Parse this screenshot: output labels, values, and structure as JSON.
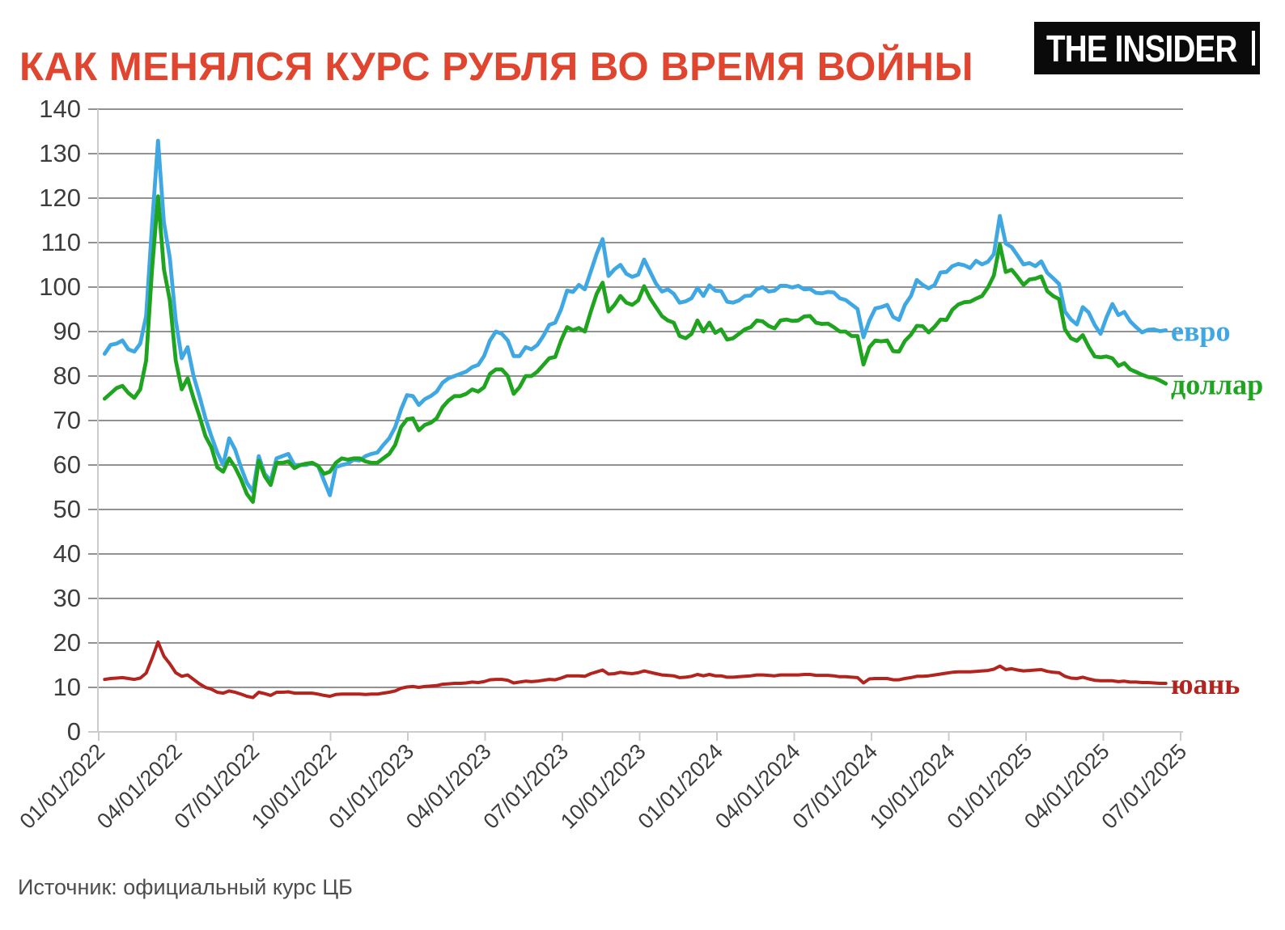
{
  "header": {
    "title": "КАК МЕНЯЛСЯ КУРС РУБЛЯ ВО ВРЕМЯ ВОЙНЫ",
    "logo_text": "THE INSIDER"
  },
  "footer": {
    "source": "Источник: официальный курс ЦБ"
  },
  "colors": {
    "title_red": "#E0452F",
    "euro_blue": "#3FA8E3",
    "dollar_green": "#1EA41E",
    "yuan_red": "#B3241F",
    "grid_gray": "#929292",
    "axis_light_gray": "#cccccc",
    "tick_label_gray": "#3d3d3d"
  },
  "chart_data": {
    "type": "line",
    "title": "КАК МЕНЯЛСЯ КУРС РУБЛЯ ВО ВРЕМЯ ВОЙНЫ",
    "xlabel": "",
    "ylabel": "",
    "ylim": [
      0,
      140
    ],
    "y_ticks": [
      0,
      10,
      20,
      30,
      40,
      50,
      60,
      70,
      80,
      90,
      100,
      110,
      120,
      130,
      140
    ],
    "x_tick_labels": [
      "01/01/2022",
      "04/01/2022",
      "07/01/2022",
      "10/01/2022",
      "01/01/2023",
      "04/01/2023",
      "07/01/2023",
      "10/01/2023",
      "01/01/2024",
      "04/01/2024",
      "07/01/2024",
      "10/01/2024",
      "01/01/2025",
      "04/01/2025",
      "07/01/2025"
    ],
    "grid": "horizontal",
    "legend_position": "labels at right end of each line",
    "sampling": "weekly values, 08/01/2022 through 14/06/2025",
    "series": [
      {
        "name": "евро",
        "color": "#3FA8E3",
        "values": [
          85.0,
          87.0,
          87.3,
          88.0,
          86.0,
          85.5,
          87.3,
          93.5,
          114.0,
          132.9,
          114.5,
          106.5,
          92.5,
          84.0,
          86.5,
          80.0,
          75.5,
          70.5,
          66.5,
          62.8,
          60.0,
          66.0,
          63.5,
          59.5,
          56.0,
          54.0,
          62.0,
          58.0,
          56.5,
          61.5,
          62.0,
          62.5,
          60.0,
          60.0,
          60.0,
          60.5,
          59.8,
          56.5,
          53.2,
          59.5,
          60.0,
          60.3,
          61.2,
          61.0,
          62.0,
          62.5,
          62.8,
          64.5,
          66.0,
          68.5,
          72.5,
          75.7,
          75.5,
          73.5,
          74.8,
          75.5,
          76.5,
          78.5,
          79.5,
          80.0,
          80.5,
          81.0,
          82.0,
          82.5,
          84.5,
          88.0,
          90.0,
          89.5,
          88.0,
          84.5,
          84.5,
          86.5,
          86.0,
          87.0,
          89.0,
          91.5,
          92.0,
          95.0,
          99.2,
          98.9,
          100.5,
          99.5,
          103.5,
          107.5,
          110.8,
          102.5,
          104.0,
          105.0,
          103.0,
          102.3,
          102.8,
          106.2,
          103.5,
          100.8,
          99.0,
          99.5,
          98.5,
          96.5,
          96.8,
          97.5,
          99.8,
          98.0,
          100.4,
          99.2,
          99.1,
          96.7,
          96.5,
          97.0,
          98.0,
          98.1,
          99.5,
          100.0,
          99.0,
          99.2,
          100.3,
          100.3,
          99.9,
          100.3,
          99.5,
          99.6,
          98.7,
          98.6,
          98.9,
          98.8,
          97.5,
          97.1,
          96.1,
          95.1,
          88.7,
          92.5,
          95.2,
          95.5,
          96.0,
          93.3,
          92.6,
          96.0,
          98.0,
          101.6,
          100.5,
          99.7,
          100.5,
          103.3,
          103.4,
          104.7,
          105.2,
          104.9,
          104.3,
          105.9,
          105.1,
          105.7,
          107.4,
          116.0,
          109.8,
          109.0,
          107.1,
          105.1,
          105.4,
          104.7,
          105.8,
          103.2,
          102.0,
          100.7,
          94.5,
          92.7,
          91.6,
          95.5,
          94.3,
          91.5,
          89.5,
          93.2,
          96.2,
          93.7,
          94.4,
          92.3,
          91.0,
          89.8,
          90.4,
          90.5,
          90.1,
          90.3
        ]
      },
      {
        "name": "доллар",
        "color": "#1EA41E",
        "values": [
          74.9,
          76.1,
          77.3,
          77.8,
          76.2,
          75.1,
          77.0,
          83.5,
          104.0,
          120.4,
          104.0,
          97.0,
          83.5,
          77.0,
          79.5,
          75.0,
          71.0,
          66.5,
          64.0,
          59.5,
          58.5,
          61.5,
          59.5,
          56.8,
          53.5,
          51.7,
          61.0,
          57.5,
          55.5,
          60.5,
          60.5,
          60.8,
          59.3,
          60.0,
          60.3,
          60.5,
          59.8,
          58.0,
          58.5,
          60.5,
          61.5,
          61.2,
          61.5,
          61.5,
          60.8,
          60.5,
          60.5,
          61.5,
          62.5,
          64.5,
          68.5,
          70.3,
          70.5,
          67.8,
          69.0,
          69.5,
          70.5,
          73.0,
          74.5,
          75.5,
          75.5,
          76.0,
          77.0,
          76.5,
          77.5,
          80.5,
          81.5,
          81.5,
          80.0,
          76.0,
          77.5,
          80.0,
          80.0,
          81.0,
          82.5,
          84.0,
          84.3,
          88.0,
          91.0,
          90.3,
          90.8,
          90.0,
          94.5,
          98.5,
          101.0,
          94.5,
          96.0,
          98.0,
          96.5,
          96.0,
          97.0,
          100.2,
          97.5,
          95.5,
          93.5,
          92.5,
          92.0,
          89.0,
          88.5,
          89.5,
          92.5,
          90.0,
          92.0,
          89.7,
          90.5,
          88.2,
          88.5,
          89.5,
          90.5,
          91.0,
          92.5,
          92.3,
          91.3,
          90.7,
          92.5,
          92.7,
          92.4,
          92.5,
          93.4,
          93.5,
          92.0,
          91.7,
          91.8,
          91.0,
          90.0,
          90.0,
          89.0,
          89.0,
          82.6,
          86.5,
          88.0,
          87.8,
          88.0,
          85.6,
          85.5,
          87.9,
          89.3,
          91.3,
          91.2,
          89.8,
          91.1,
          92.7,
          92.6,
          94.9,
          96.1,
          96.6,
          96.7,
          97.4,
          98.0,
          99.9,
          102.6,
          109.6,
          103.4,
          103.9,
          102.3,
          100.5,
          101.7,
          101.9,
          102.4,
          99.1,
          98.0,
          97.3,
          90.5,
          88.5,
          87.9,
          89.2,
          86.6,
          84.4,
          84.2,
          84.4,
          84.0,
          82.3,
          82.9,
          81.5,
          80.9,
          80.3,
          79.8,
          79.6,
          79.0,
          78.3
        ]
      },
      {
        "name": "юань",
        "color": "#B3241F",
        "values": [
          11.8,
          12.0,
          12.1,
          12.2,
          12.0,
          11.8,
          12.1,
          13.2,
          16.5,
          20.2,
          17.0,
          15.3,
          13.3,
          12.5,
          12.8,
          11.8,
          10.8,
          10.0,
          9.6,
          8.9,
          8.7,
          9.2,
          8.9,
          8.5,
          8.0,
          7.7,
          8.9,
          8.6,
          8.2,
          8.9,
          8.9,
          9.0,
          8.7,
          8.7,
          8.7,
          8.7,
          8.5,
          8.2,
          8.0,
          8.4,
          8.5,
          8.5,
          8.5,
          8.5,
          8.4,
          8.5,
          8.5,
          8.7,
          8.9,
          9.2,
          9.8,
          10.1,
          10.2,
          10.0,
          10.2,
          10.3,
          10.4,
          10.7,
          10.8,
          10.9,
          10.9,
          11.0,
          11.2,
          11.1,
          11.3,
          11.7,
          11.8,
          11.8,
          11.6,
          11.0,
          11.2,
          11.4,
          11.3,
          11.4,
          11.6,
          11.8,
          11.7,
          12.1,
          12.6,
          12.6,
          12.6,
          12.5,
          13.1,
          13.5,
          13.9,
          13.0,
          13.1,
          13.4,
          13.2,
          13.1,
          13.3,
          13.7,
          13.4,
          13.1,
          12.8,
          12.7,
          12.6,
          12.2,
          12.3,
          12.5,
          12.9,
          12.6,
          12.9,
          12.6,
          12.6,
          12.3,
          12.3,
          12.4,
          12.5,
          12.6,
          12.8,
          12.8,
          12.7,
          12.6,
          12.8,
          12.8,
          12.8,
          12.8,
          12.9,
          12.9,
          12.7,
          12.7,
          12.7,
          12.6,
          12.4,
          12.4,
          12.3,
          12.2,
          11.0,
          11.9,
          12.0,
          12.0,
          12.0,
          11.7,
          11.7,
          12.0,
          12.2,
          12.5,
          12.5,
          12.6,
          12.8,
          13.0,
          13.2,
          13.4,
          13.5,
          13.5,
          13.5,
          13.6,
          13.7,
          13.8,
          14.1,
          14.8,
          14.0,
          14.2,
          13.9,
          13.7,
          13.8,
          13.9,
          14.0,
          13.6,
          13.4,
          13.3,
          12.5,
          12.1,
          12.0,
          12.3,
          11.9,
          11.6,
          11.5,
          11.5,
          11.5,
          11.3,
          11.4,
          11.2,
          11.2,
          11.1,
          11.1,
          11.0,
          10.9,
          10.9
        ]
      }
    ]
  }
}
